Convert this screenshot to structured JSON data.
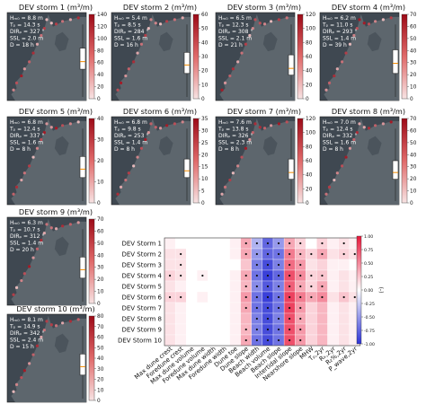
{
  "panels": [
    {
      "title": "DEV storm 1 (m³/m)",
      "stats": [
        "Hₘ₀ = 8.8 m",
        "Tₚ = 14.3 s",
        "DIRₚ = 327 °",
        "SSL = 2.0 m",
        "D = 18 h"
      ],
      "cbar_ticks": [
        "0",
        "20",
        "40",
        "60",
        "80",
        "100",
        "120",
        "140"
      ],
      "cbar_max": 140,
      "box": {
        "q1": 0.35,
        "median": 0.44,
        "q3": 0.6
      }
    },
    {
      "title": "DEV storm 2 (m³/m)",
      "stats": [
        "Hₘ₀ = 5.4 m",
        "Tₚ = 8.5 s",
        "DIRₚ = 284 °",
        "SSL = 1.6 m",
        "D = 16 h"
      ],
      "cbar_ticks": [
        "0",
        "10",
        "20",
        "30",
        "40",
        "50",
        "60"
      ],
      "cbar_max": 60,
      "box": {
        "q1": 0.3,
        "median": 0.4,
        "q3": 0.55
      }
    },
    {
      "title": "DEV storm 3 (m³/m)",
      "stats": [
        "Hₘ₀ = 6.5 m",
        "Tₚ = 12.3 s",
        "DIRₚ = 308 °",
        "SSL = 2.1 m",
        "D = 21 h"
      ],
      "cbar_ticks": [
        "0",
        "20",
        "40",
        "60",
        "80",
        "100",
        "120"
      ],
      "cbar_max": 120,
      "box": {
        "q1": 0.28,
        "median": 0.36,
        "q3": 0.52
      }
    },
    {
      "title": "DEV storm 4 (m³/m)",
      "stats": [
        "Hₘ₀ = 6.2 m",
        "Tₚ = 11.0 s",
        "DIRₚ = 293 °",
        "SSL = 1.4 m",
        "D = 39 h"
      ],
      "cbar_ticks": [
        "0",
        "10",
        "20",
        "30",
        "40",
        "50",
        "60",
        "70"
      ],
      "cbar_max": 70,
      "box": {
        "q1": 0.3,
        "median": 0.42,
        "q3": 0.58
      }
    },
    {
      "title": "DEV storm 5 (m³/m)",
      "stats": [
        "Hₘ₀ = 6.8 m",
        "Tₚ = 12.4 s",
        "DIRₚ = 337 °",
        "SSL = 1.6 m",
        "D = 8 h"
      ],
      "cbar_ticks": [
        "0",
        "10",
        "20",
        "30",
        "40"
      ],
      "cbar_max": 40,
      "box": {
        "q1": 0.3,
        "median": 0.4,
        "q3": 0.55
      }
    },
    {
      "title": "DEV storm 6 (m³/m)",
      "stats": [
        "Hₘ₀ = 6.8 m",
        "Tₚ = 9.8 s",
        "DIRₚ = 253 °",
        "SSL = 1.4 m",
        "D = 8 h"
      ],
      "cbar_ticks": [
        "0",
        "5",
        "10",
        "15",
        "20",
        "25",
        "30",
        "35"
      ],
      "cbar_max": 35,
      "box": {
        "q1": 0.3,
        "median": 0.38,
        "q3": 0.52
      }
    },
    {
      "title": "DEV storm 7 (m³/m)",
      "stats": [
        "Hₘ₀ = 7.6 m",
        "Tₚ = 13.8 s",
        "DIRₚ = 326 °",
        "SSL = 2.3 m",
        "D = 8 h"
      ],
      "cbar_ticks": [
        "0",
        "20",
        "40",
        "60",
        "80",
        "100",
        "120"
      ],
      "cbar_max": 120,
      "box": {
        "q1": 0.28,
        "median": 0.36,
        "q3": 0.52
      }
    },
    {
      "title": "DEV storm 8 (m³/m)",
      "stats": [
        "Hₘ₀ = 7.0 m",
        "Tₚ = 12.4 s",
        "DIRₚ = 332 °",
        "SSL = 1.6 m",
        "D = 8 h"
      ],
      "cbar_ticks": [
        "0",
        "10",
        "20",
        "30",
        "40",
        "50",
        "60",
        "70"
      ],
      "cbar_max": 70,
      "box": {
        "q1": 0.28,
        "median": 0.36,
        "q3": 0.5
      }
    },
    {
      "title": "DEV storm 9 (m³/m)",
      "stats": [
        "Hₘ₀ = 6.3 m",
        "Tₚ = 10.7 s",
        "DIRₚ = 312 °",
        "SSL = 1.4 m",
        "D = 20 h"
      ],
      "cbar_ticks": [
        "0",
        "10",
        "20",
        "30",
        "40",
        "50",
        "60",
        "70"
      ],
      "cbar_max": 70,
      "box": {
        "q1": 0.3,
        "median": 0.4,
        "q3": 0.55
      }
    },
    {
      "title": "DEV storm 10 (m³/m)",
      "stats": [
        "Hₘ₀ = 8.1 m",
        "Tₚ = 14.9 s",
        "DIRₚ = 342 °",
        "SSL = 2.4 m",
        "D = 15 h"
      ],
      "cbar_ticks": [
        "0",
        "10",
        "20",
        "30",
        "40",
        "50",
        "60",
        "70",
        "80"
      ],
      "cbar_max": 80,
      "box": {
        "q1": 0.3,
        "median": 0.4,
        "q3": 0.55
      }
    }
  ],
  "chart_data": {
    "type": "heatmap",
    "rows": [
      "DEV Storm 1",
      "DEV Storm 2",
      "DEV Storm 3",
      "DEV Storm 4",
      "DEV Storm 5",
      "DEV Storm 6",
      "DEV Storm 7",
      "DEV Storm 8",
      "DEV Storm 9",
      "DEV Storm 10"
    ],
    "columns": [
      "Max dune crest",
      "Foredune crest",
      "Max dune volume",
      "Foredune volume",
      "Max dune width",
      "Foredune width",
      "Dune toe",
      "Dune slope",
      "Beach width",
      "Beach volume",
      "Beach slope",
      "Intertidal slope",
      "Nearshore slope",
      "MHW",
      "Tₚ,2yr",
      "Rₖ,2yr",
      "R₂%,2yr",
      "P_wave,2yr"
    ],
    "values": [
      [
        0.05,
        0.0,
        0.0,
        0.0,
        0.0,
        0.0,
        0.05,
        0.3,
        -0.3,
        -0.6,
        -0.4,
        0.3,
        0.15,
        0.0,
        0.15,
        0.05,
        0.1,
        0.05
      ],
      [
        0.1,
        0.1,
        0.0,
        0.0,
        0.0,
        0.0,
        0.05,
        0.3,
        -0.4,
        -0.6,
        -0.55,
        0.45,
        0.25,
        0.15,
        0.3,
        0.1,
        0.15,
        0.1
      ],
      [
        0.1,
        0.1,
        0.0,
        0.0,
        0.0,
        0.0,
        0.0,
        0.2,
        -0.5,
        -0.7,
        -0.5,
        0.5,
        0.35,
        0.1,
        0.15,
        0.05,
        0.05,
        0.0
      ],
      [
        0.15,
        0.1,
        0.0,
        0.05,
        0.0,
        0.0,
        0.05,
        0.3,
        -0.55,
        -0.75,
        -0.6,
        0.6,
        0.4,
        0.15,
        0.2,
        0.05,
        0.1,
        0.05
      ],
      [
        0.1,
        0.05,
        0.0,
        0.0,
        0.0,
        0.0,
        0.05,
        0.25,
        -0.45,
        -0.65,
        -0.5,
        0.55,
        0.3,
        0.15,
        0.3,
        0.05,
        0.1,
        0.05
      ],
      [
        0.15,
        0.15,
        0.0,
        0.05,
        0.0,
        0.0,
        0.05,
        0.35,
        -0.55,
        -0.75,
        -0.55,
        0.65,
        0.45,
        0.3,
        0.4,
        0.1,
        0.2,
        0.1
      ],
      [
        0.1,
        0.05,
        0.0,
        0.0,
        0.0,
        0.0,
        0.05,
        0.3,
        -0.55,
        -0.7,
        -0.55,
        0.65,
        0.35,
        0.15,
        0.25,
        0.05,
        0.1,
        0.05
      ],
      [
        0.1,
        0.05,
        0.0,
        0.0,
        0.0,
        0.0,
        0.05,
        0.25,
        -0.5,
        -0.7,
        -0.5,
        0.6,
        0.3,
        0.15,
        0.25,
        0.05,
        0.1,
        0.05
      ],
      [
        0.1,
        0.05,
        0.0,
        0.0,
        0.0,
        0.0,
        0.05,
        0.25,
        -0.5,
        -0.7,
        -0.55,
        0.6,
        0.35,
        0.15,
        0.25,
        0.05,
        0.1,
        0.05
      ],
      [
        0.1,
        0.05,
        0.0,
        0.0,
        0.0,
        0.0,
        0.05,
        0.3,
        -0.55,
        -0.7,
        -0.55,
        0.6,
        0.35,
        0.15,
        0.25,
        0.05,
        0.1,
        0.05
      ]
    ],
    "significant": [
      [
        0,
        0,
        0,
        0,
        0,
        0,
        0,
        1,
        1,
        1,
        1,
        1,
        1,
        0,
        1,
        0,
        1,
        0
      ],
      [
        0,
        1,
        0,
        0,
        0,
        0,
        0,
        1,
        1,
        1,
        1,
        1,
        1,
        1,
        1,
        0,
        1,
        1
      ],
      [
        0,
        1,
        0,
        0,
        0,
        0,
        0,
        0,
        1,
        1,
        1,
        1,
        1,
        0,
        0,
        0,
        0,
        0
      ],
      [
        1,
        1,
        0,
        1,
        0,
        0,
        0,
        1,
        1,
        1,
        1,
        1,
        1,
        1,
        1,
        0,
        0,
        0
      ],
      [
        0,
        0,
        0,
        0,
        0,
        0,
        0,
        1,
        1,
        1,
        1,
        1,
        1,
        1,
        1,
        0,
        0,
        0
      ],
      [
        1,
        1,
        0,
        0,
        0,
        0,
        0,
        1,
        1,
        1,
        1,
        1,
        1,
        1,
        1,
        0,
        1,
        1
      ],
      [
        0,
        0,
        0,
        0,
        0,
        0,
        0,
        1,
        1,
        1,
        1,
        1,
        1,
        0,
        0,
        0,
        0,
        0
      ],
      [
        0,
        0,
        0,
        0,
        0,
        0,
        0,
        0,
        1,
        1,
        1,
        1,
        1,
        0,
        0,
        0,
        0,
        0
      ],
      [
        0,
        0,
        0,
        0,
        0,
        0,
        0,
        1,
        1,
        1,
        1,
        1,
        1,
        0,
        0,
        0,
        0,
        0
      ],
      [
        0,
        0,
        0,
        0,
        0,
        0,
        0,
        1,
        1,
        1,
        1,
        1,
        1,
        0,
        0,
        0,
        0,
        0
      ]
    ],
    "colorbar": {
      "ticks": [
        "1.00",
        "0.75",
        "0.50",
        "0.25",
        "0.00",
        "-0.25",
        "-0.50",
        "-0.75",
        "-1.00"
      ],
      "range": [
        -1,
        1
      ],
      "label": "(-)"
    }
  },
  "colors": {
    "map_bg": "#3f4851",
    "land": "#5d666d",
    "cmap_low": "#f7e3e3",
    "cmap_high": "#9d0a17",
    "div_pos": "#e8163a",
    "div_neg": "#2d33d6"
  }
}
